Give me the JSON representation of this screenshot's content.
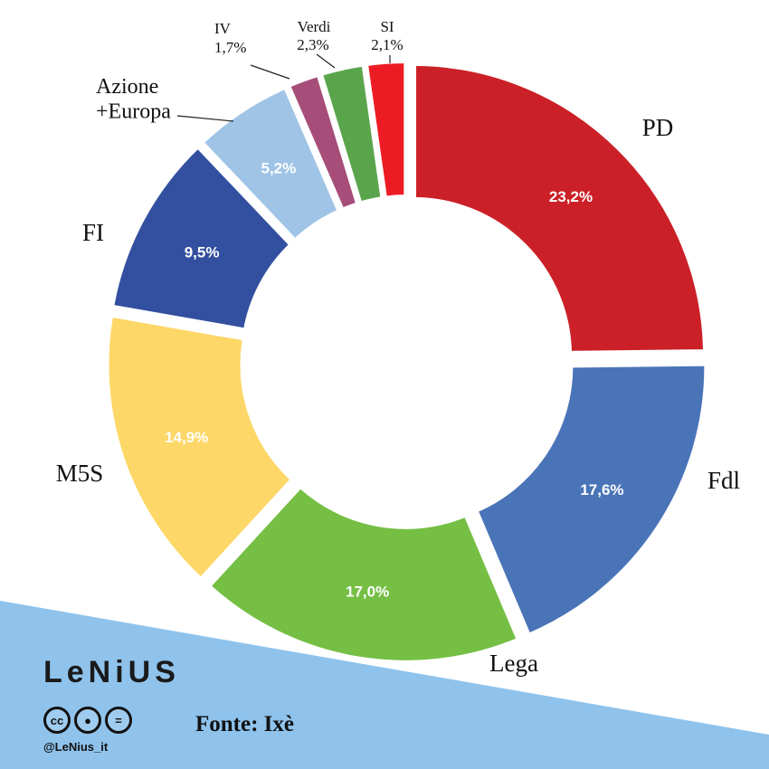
{
  "chart_data": {
    "type": "pie",
    "donut": true,
    "slices": [
      {
        "label": "PD",
        "value": 23.2,
        "display": "23,2%",
        "color": "#cb2027"
      },
      {
        "label": "Fdl",
        "value": 17.6,
        "display": "17,6%",
        "color": "#4a74b8"
      },
      {
        "label": "Lega",
        "value": 17.0,
        "display": "17,0%",
        "color": "#75bf44"
      },
      {
        "label": "M5S",
        "value": 14.9,
        "display": "14,9%",
        "color": "#fdd767"
      },
      {
        "label": "FI",
        "value": 9.5,
        "display": "9,5%",
        "color": "#334f9f"
      },
      {
        "label": "Azione +Europa",
        "value": 5.2,
        "display": "5,2%",
        "color": "#9fc4e6"
      },
      {
        "label": "IV",
        "value": 1.7,
        "display": "1,7%",
        "color": "#a64d79"
      },
      {
        "label": "Verdi",
        "value": 2.3,
        "display": "2,3%",
        "color": "#5aa54b"
      },
      {
        "label": "SI",
        "value": 2.1,
        "display": "2,1%",
        "color": "#ed1c24"
      }
    ]
  },
  "branding": {
    "logo": "LeNiUS",
    "handle": "@LeNius_it",
    "source": "Fonte: Ixè",
    "cc_icons": [
      "cc",
      "by",
      "nd"
    ],
    "band_color": "#8fc3ec"
  }
}
